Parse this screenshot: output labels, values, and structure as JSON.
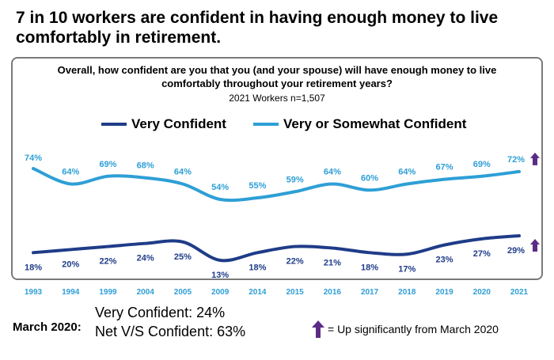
{
  "headline": "7 in 10 workers are confident in having enough money to live comfortably in retirement.",
  "chart_data": {
    "type": "line",
    "title": "Overall, how confident are you that you (and your spouse) will have enough money to live comfortably throughout your retirement years?",
    "subtitle": "2021 Workers n=1,507",
    "categories": [
      "1993",
      "1994",
      "1999",
      "2004",
      "2005",
      "2009",
      "2014",
      "2015",
      "2016",
      "2017",
      "2018",
      "2019",
      "2020",
      "2021"
    ],
    "series": [
      {
        "name": "Very Confident",
        "color": "#1f3c88",
        "values": [
          18,
          20,
          22,
          24,
          25,
          13,
          18,
          22,
          21,
          18,
          17,
          23,
          27,
          29
        ],
        "labels": [
          "18%",
          "20%",
          "22%",
          "24%",
          "25%",
          "13%",
          "18%",
          "22%",
          "21%",
          "18%",
          "17%",
          "23%",
          "27%",
          "29%"
        ]
      },
      {
        "name": "Very or Somewhat Confident",
        "color": "#2e9fd6",
        "values": [
          74,
          64,
          69,
          68,
          64,
          54,
          55,
          59,
          64,
          60,
          64,
          67,
          69,
          72
        ],
        "labels": [
          "74%",
          "64%",
          "69%",
          "68%",
          "64%",
          "54%",
          "55%",
          "59%",
          "64%",
          "60%",
          "64%",
          "67%",
          "69%",
          "72%"
        ]
      }
    ],
    "ylim": [
      0,
      100
    ],
    "grid": false,
    "legend_position": "top",
    "significant_up_marker_color": "#5b2c86"
  },
  "footer": {
    "label": "March 2020:",
    "line1": "Very Confident: 24%",
    "line2": "Net V/S Confident: 63%",
    "note": "= Up significantly from March 2020"
  }
}
